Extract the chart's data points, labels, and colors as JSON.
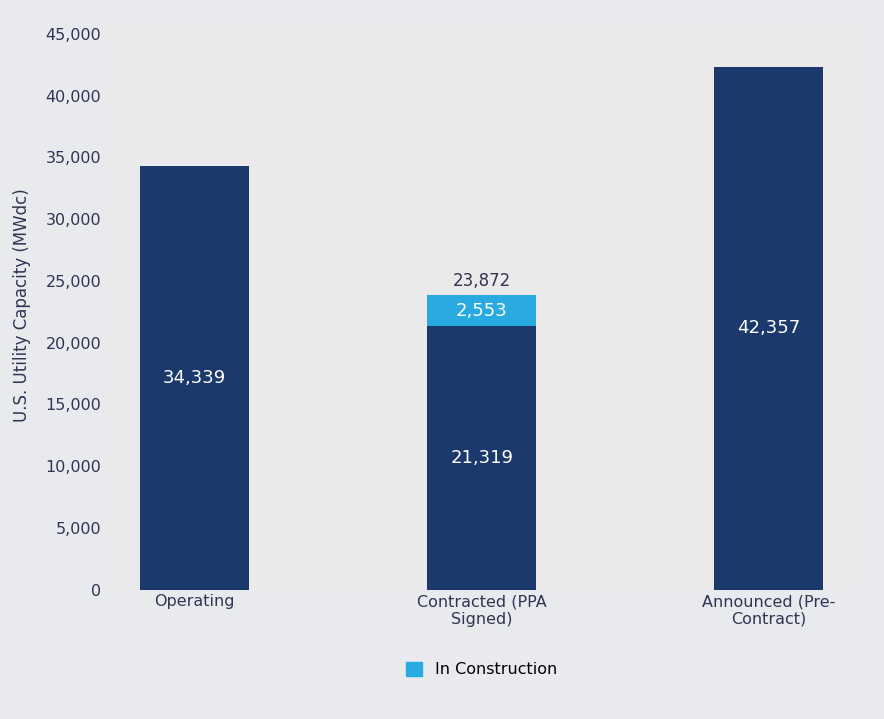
{
  "categories": [
    "Operating",
    "Contracted (PPA\nSigned)",
    "Announced (Pre-\nContract)"
  ],
  "base_values": [
    34339,
    21319,
    42357
  ],
  "stacked_values": [
    0,
    2553,
    0
  ],
  "base_color": "#1b3a6b",
  "stack_color": "#29abe2",
  "bar_labels_base": [
    "34,339",
    "21,319",
    "42,357"
  ],
  "bar_labels_stack": [
    "",
    "2,553",
    ""
  ],
  "bar_labels_total": [
    "",
    "23,872",
    ""
  ],
  "ylabel": "U.S. Utility Capacity (MWdc)",
  "ylim": [
    0,
    46000
  ],
  "yticks": [
    0,
    5000,
    10000,
    15000,
    20000,
    25000,
    30000,
    35000,
    40000,
    45000
  ],
  "outer_background": "#e8eaed",
  "plot_background": "#eaeaea",
  "bar_width": 0.38,
  "legend_label": "In Construction",
  "legend_color": "#29abe2",
  "label_fontsize": 13,
  "tick_fontsize": 11.5,
  "ylabel_fontsize": 12,
  "total_label_color": "#333355",
  "total_label_fontsize": 12
}
